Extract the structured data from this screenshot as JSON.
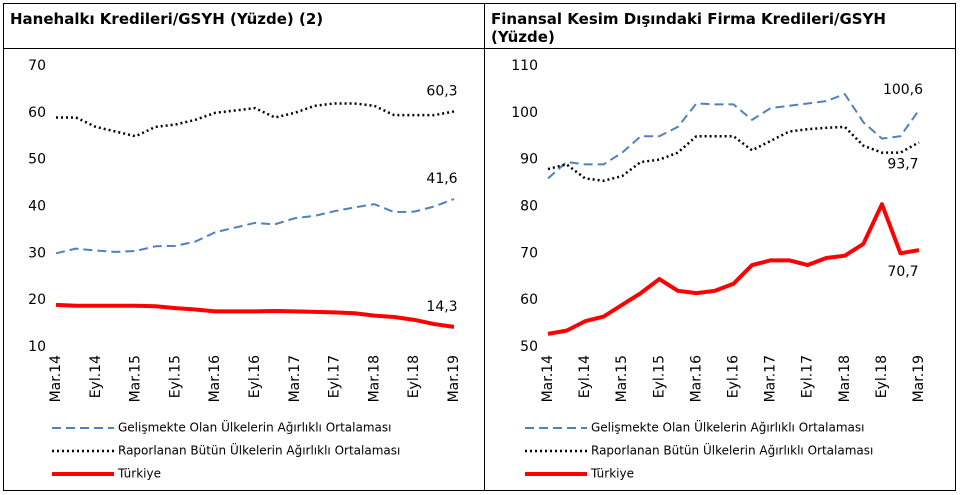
{
  "chart_data": [
    {
      "type": "line",
      "title": "Hanehalkı Kredileri/GSYH (Yüzde) (2)",
      "categories": [
        "Mar.14",
        null,
        "Eyl.14",
        null,
        "Mar.15",
        null,
        "Eyl.15",
        null,
        "Mar.16",
        null,
        "Eyl.16",
        null,
        "Mar.17",
        null,
        "Eyl.17",
        null,
        "Mar.18",
        null,
        "Eyl.18",
        null,
        "Mar.19"
      ],
      "ylim": [
        10,
        70
      ],
      "yticks": [
        10,
        20,
        30,
        40,
        50,
        60,
        70
      ],
      "series": [
        {
          "name": "Gelişmekte Olan Ülkelerin Ağırlıklı Ortalaması",
          "color": "#4f81bd",
          "line_style": "dashed",
          "values": [
            30,
            31,
            30.6,
            30.3,
            30.5,
            31.5,
            31.6,
            32.5,
            34.5,
            35.5,
            36.5,
            36.2,
            37.5,
            38,
            39,
            39.8,
            40.5,
            38.8,
            38.9,
            40,
            41.6
          ],
          "value_labels": [
            null,
            null,
            null,
            null,
            null,
            null,
            null,
            null,
            null,
            null,
            null,
            null,
            null,
            null,
            null,
            null,
            null,
            null,
            null,
            null,
            "41,6"
          ]
        },
        {
          "name": "Raporlanan Bütün Ülkelerin Ağırlıklı Ortalaması",
          "color": "#000000",
          "line_style": "dotted",
          "values": [
            59,
            59,
            57,
            56,
            55,
            57,
            57.5,
            58.5,
            60,
            60.5,
            61,
            59,
            60,
            61.5,
            62,
            62,
            61.5,
            59.5,
            59.5,
            59.5,
            60.3
          ],
          "value_labels": [
            null,
            null,
            null,
            null,
            null,
            null,
            null,
            null,
            null,
            null,
            null,
            null,
            null,
            null,
            null,
            null,
            null,
            null,
            null,
            null,
            "60,3"
          ]
        },
        {
          "name": "Türkiye",
          "color": "#ff0000",
          "line_style": "solid",
          "values": [
            19,
            18.8,
            18.8,
            18.8,
            18.8,
            18.7,
            18.3,
            18,
            17.6,
            17.6,
            17.6,
            17.7,
            17.6,
            17.5,
            17.4,
            17.2,
            16.7,
            16.4,
            15.8,
            14.9,
            14.3
          ],
          "value_labels": [
            null,
            null,
            null,
            null,
            null,
            null,
            null,
            null,
            null,
            null,
            null,
            null,
            null,
            null,
            null,
            null,
            null,
            null,
            null,
            null,
            "14,3"
          ]
        }
      ]
    },
    {
      "type": "line",
      "title": "Finansal Kesim Dışındaki Firma Kredileri/GSYH (Yüzde)",
      "categories": [
        "Mar.14",
        null,
        "Eyl.14",
        null,
        "Mar.15",
        null,
        "Eyl.15",
        null,
        "Mar.16",
        null,
        "Eyl.16",
        null,
        "Mar.17",
        null,
        "Eyl.17",
        null,
        "Mar.18",
        null,
        "Eyl.18",
        null,
        "Mar.19"
      ],
      "ylim": [
        50,
        110
      ],
      "yticks": [
        50,
        60,
        70,
        80,
        90,
        100,
        110
      ],
      "series": [
        {
          "name": "Gelişmekte Olan Ülkelerin Ağırlıklı Ortalaması",
          "color": "#4f81bd",
          "line_style": "dashed",
          "values": [
            86,
            89.5,
            89,
            89,
            91.5,
            95,
            95,
            97,
            102,
            101.8,
            101.8,
            98.5,
            101,
            101.5,
            102,
            102.5,
            104,
            98,
            94.5,
            95,
            100.6
          ],
          "value_labels": [
            null,
            null,
            null,
            null,
            null,
            null,
            null,
            null,
            null,
            null,
            null,
            null,
            null,
            null,
            null,
            null,
            null,
            null,
            null,
            null,
            "100,6"
          ]
        },
        {
          "name": "Raporlanan Bütün Ülkelerin Ağırlıklı Ortalaması",
          "color": "#000000",
          "line_style": "dotted",
          "values": [
            88,
            89,
            86,
            85.5,
            86.5,
            89.5,
            90,
            91.5,
            95,
            95,
            95,
            92,
            94,
            96,
            96.5,
            96.8,
            97,
            93,
            91.5,
            91.5,
            93.7
          ],
          "value_labels": [
            null,
            null,
            null,
            null,
            null,
            null,
            null,
            null,
            null,
            null,
            null,
            null,
            null,
            null,
            null,
            null,
            null,
            null,
            null,
            null,
            "93,7"
          ]
        },
        {
          "name": "Türkiye",
          "color": "#ff0000",
          "line_style": "solid",
          "values": [
            52.8,
            53.5,
            55.5,
            56.5,
            59,
            61.5,
            64.5,
            62,
            61.5,
            62,
            63.5,
            67.5,
            68.5,
            68.5,
            67.5,
            69,
            69.5,
            72,
            80.5,
            70,
            70.7
          ],
          "value_labels": [
            null,
            null,
            null,
            null,
            null,
            null,
            null,
            null,
            null,
            null,
            null,
            null,
            null,
            null,
            null,
            null,
            null,
            null,
            null,
            null,
            "70,7"
          ]
        }
      ]
    }
  ]
}
